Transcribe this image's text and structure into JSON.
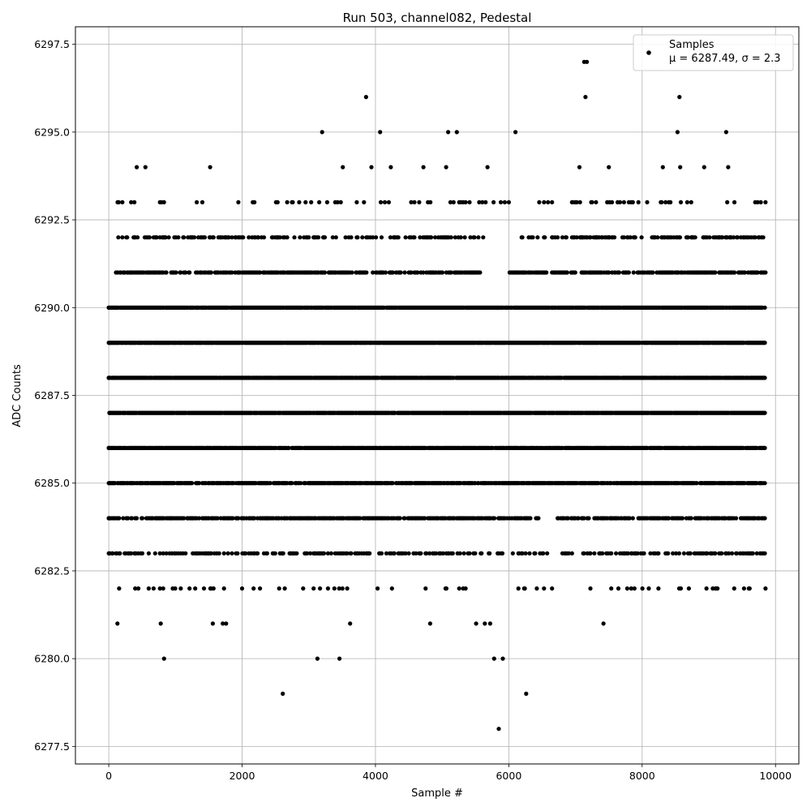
{
  "chart_data": {
    "type": "scatter",
    "title": "Run 503, channel082, Pedestal",
    "xlabel": "Sample #",
    "ylabel": "ADC Counts",
    "xlim": [
      -500,
      10350
    ],
    "ylim": [
      6277.0,
      6298.0
    ],
    "xticks": [
      0,
      2000,
      4000,
      6000,
      8000,
      10000
    ],
    "xtick_labels": [
      "0",
      "2000",
      "4000",
      "6000",
      "8000",
      "10000"
    ],
    "yticks": [
      6277.5,
      6280.0,
      6282.5,
      6285.0,
      6287.5,
      6290.0,
      6292.5,
      6295.0,
      6297.5
    ],
    "ytick_labels": [
      "6277.5",
      "6280.0",
      "6282.5",
      "6285.0",
      "6287.5",
      "6290.0",
      "6292.5",
      "6295.0",
      "6297.5"
    ],
    "grid": true,
    "legend": {
      "position": "top-right",
      "series_label": "Samples",
      "stats_label": "μ = 6287.49, σ = 2.3"
    },
    "marker_color": "#000000",
    "series": [
      {
        "name": "Samples",
        "points": [
          [
            0,
            6290
          ],
          [
            20,
            6289
          ],
          [
            0,
            6288
          ],
          [
            10,
            6287
          ],
          [
            0,
            6286
          ],
          [
            5,
            6285
          ],
          [
            0,
            6284
          ],
          [
            10,
            6283
          ],
          [
            130,
            6281
          ],
          [
            150,
            6293
          ],
          [
            830,
            6280
          ],
          [
            420,
            6294
          ],
          [
            550,
            6294
          ],
          [
            1520,
            6294
          ],
          [
            2610,
            6279
          ],
          [
            3130,
            6280
          ],
          [
            3200,
            6295
          ],
          [
            3460,
            6280
          ],
          [
            3510,
            6294
          ],
          [
            3620,
            6281
          ],
          [
            3860,
            6296
          ],
          [
            3940,
            6294
          ],
          [
            4070,
            6295
          ],
          [
            4230,
            6294
          ],
          [
            4720,
            6294
          ],
          [
            4820,
            6281
          ],
          [
            5060,
            6294
          ],
          [
            5090,
            6295
          ],
          [
            5220,
            6295
          ],
          [
            5510,
            6281
          ],
          [
            5680,
            6294
          ],
          [
            5780,
            6280
          ],
          [
            5850,
            6278
          ],
          [
            5910,
            6280
          ],
          [
            6100,
            6295
          ],
          [
            6260,
            6279
          ],
          [
            7130,
            6297
          ],
          [
            7170,
            6297
          ],
          [
            7150,
            6296
          ],
          [
            7420,
            6281
          ],
          [
            7060,
            6294
          ],
          [
            7500,
            6294
          ],
          [
            8310,
            6294
          ],
          [
            8530,
            6295
          ],
          [
            8560,
            6296
          ],
          [
            8570,
            6294
          ],
          [
            8930,
            6294
          ],
          [
            9260,
            6295
          ],
          [
            9290,
            6294
          ],
          [
            9850,
            6293
          ],
          [
            9850,
            6291
          ],
          [
            9850,
            6282
          ],
          [
            780,
            6281
          ],
          [
            1560,
            6281
          ],
          [
            1710,
            6281
          ],
          [
            1760,
            6281
          ],
          [
            5640,
            6281
          ],
          [
            5720,
            6281
          ],
          [
            8100,
            6282
          ],
          [
            9100,
            6282
          ],
          [
            9130,
            6282
          ],
          [
            9380,
            6282
          ],
          [
            2000,
            6282
          ],
          [
            6230,
            6282
          ]
        ],
        "dense_rows": [
          {
            "y": 6290,
            "density": 0.95
          },
          {
            "y": 6289,
            "density": 0.95
          },
          {
            "y": 6288,
            "density": 0.95
          },
          {
            "y": 6287,
            "density": 0.95
          },
          {
            "y": 6286,
            "density": 0.9
          },
          {
            "y": 6285,
            "density": 0.85
          },
          {
            "y": 6284,
            "density": 0.6
          },
          {
            "y": 6291,
            "density": 0.55
          },
          {
            "y": 6283,
            "density": 0.35
          },
          {
            "y": 6292,
            "density": 0.33
          },
          {
            "y": 6293,
            "density": 0.1
          },
          {
            "y": 6282,
            "density": 0.08
          }
        ],
        "gaps": [
          {
            "y": 6291,
            "from": 0,
            "to": 100
          },
          {
            "y": 6291,
            "from": 5600,
            "to": 6000
          },
          {
            "y": 6292,
            "from": 5620,
            "to": 6150
          },
          {
            "y": 6292,
            "from": 0,
            "to": 100
          },
          {
            "y": 6284,
            "from": 6450,
            "to": 6700
          }
        ]
      }
    ]
  }
}
